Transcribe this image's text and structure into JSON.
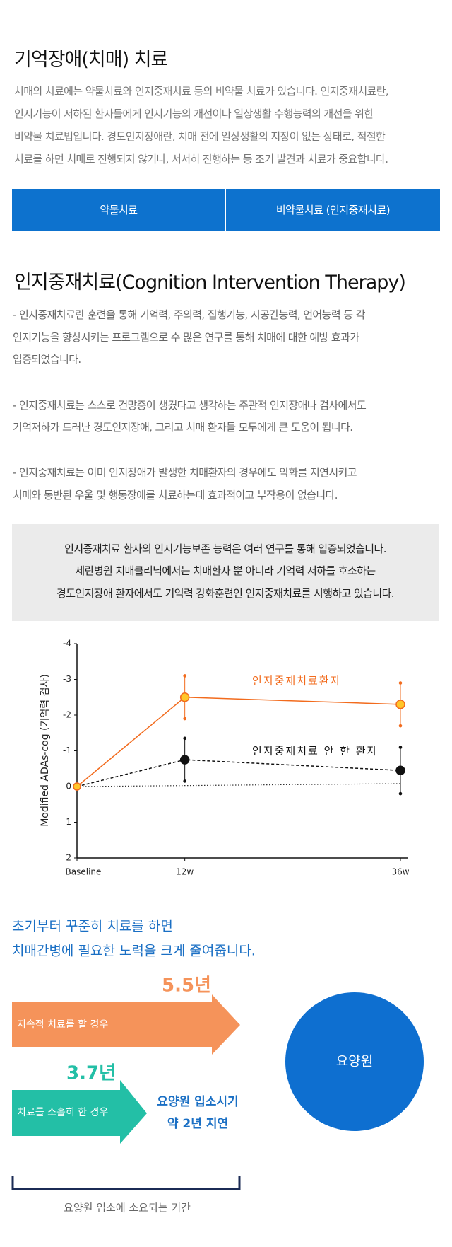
{
  "section1": {
    "title": "기억장애(치매) 치료",
    "lines": [
      "치매의 치료에는 약물치료와 인지중재치료 등의 비약물 치료가 있습니다. 인지중재치료란,",
      "인지기능이 저하된 환자들에게 인지기능의 개선이나 일상생활 수행능력의 개선을 위한",
      "비약물 치료법입니다. 경도인지장애란, 치매 전에 일상생활의 지장이 없는 상태로, 적절한",
      "치료를 하면 치매로 진행되지 않거나, 서서히 진행하는 등 조기 발견과 치료가 중요합니다."
    ]
  },
  "tabs": [
    "약물치료",
    "비약물치료 (인지중재치료)"
  ],
  "section2": {
    "title": "인지중재치료(Cognition Intervention Therapy)",
    "bullets": [
      [
        "- 인지중재치료란 훈련을 통해 기억력, 주의력, 집행기능, 시공간능력, 언어능력 등 각",
        "인지기능을 향상시키는 프로그램으로 수 많은 연구를 통해 치매에 대한 예방 효과가",
        "입증되었습니다."
      ],
      [
        "- 인지중재치료는 스스로 건망증이 생겼다고 생각하는 주관적 인지장애나 검사에서도",
        "기억저하가 드러난 경도인지장애, 그리고 치매 환자들 모두에게 큰 도움이 됩니다."
      ],
      [
        "- 인지중재치료는 이미 인지장애가 발생한 치매환자의 경우에도 악화를 지연시키고",
        "치매와 동반된 우울 및 행동장애를 치료하는데 효과적이고 부작용이 없습니다."
      ]
    ]
  },
  "notice": {
    "lines": [
      "인지중재치료 환자의 인지기능보존 능력은 여러 연구를 통해 입증되었습니다.",
      "세란병원 치매클리닉에서는 치매환자 뿐 아니라 기억력 저하를 호소하는",
      "경도인지장애 환자에서도 기억력 강화훈련인 인지중재치료를 시행하고 있습니다."
    ]
  },
  "chart_data": {
    "type": "line",
    "y_label": "Modified ADAs-cog (기억력 검사)",
    "x": [
      0,
      12,
      36
    ],
    "xlim": [
      0,
      36
    ],
    "xticks": [
      {
        "value": 0,
        "label": "Baseline"
      },
      {
        "value": 12,
        "label": "12w"
      },
      {
        "value": 36,
        "label": "36w"
      }
    ],
    "ylim": [
      2,
      -4
    ],
    "yticks": [
      -4,
      -3,
      -2,
      -1,
      0,
      1,
      2
    ],
    "series": [
      {
        "name": "인지중재치료환자",
        "color": "#f26b1d",
        "values": [
          0,
          -2.5,
          -2.3
        ],
        "errors": [
          null,
          0.6,
          0.6
        ],
        "dashed": false
      },
      {
        "name": "인지중재치료 안 한 환자",
        "color": "#111111",
        "values": [
          0,
          -0.75,
          -0.45
        ],
        "errors": [
          null,
          0.6,
          0.65
        ],
        "dashed": true
      }
    ],
    "reference_line": {
      "x": [
        0,
        36
      ],
      "values": [
        0,
        -0.08
      ]
    }
  },
  "summary": {
    "lines": [
      "초기부터 꾸준히 치료를 하면",
      "치매간병에 필요한 노력을 크게 줄여줍니다."
    ]
  },
  "comparison": {
    "items": [
      {
        "value_label": "5.5년",
        "label": "지속적 치료를 할 경우",
        "color": "#f5935a"
      },
      {
        "value_label": "3.7년",
        "label": "치료를 소홀히 한 경우",
        "color": "#23bfa6"
      }
    ],
    "delay_lines": [
      "요양원 입소시기",
      "약 2년 지연"
    ],
    "circle_label": "요양원",
    "period_label": "요양원 입소에 소요되는 기간"
  }
}
